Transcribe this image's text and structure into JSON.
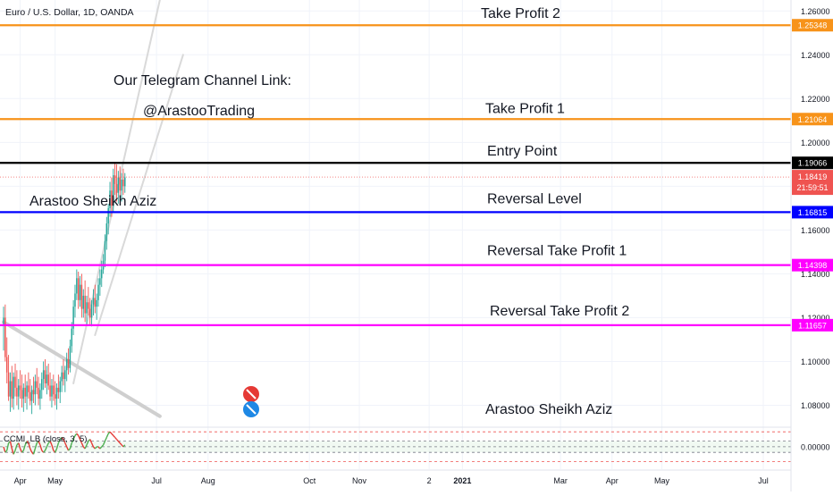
{
  "header": {
    "symbol": "Euro / U.S. Dollar, 1D, OANDA"
  },
  "annotations": {
    "telegram_line1": "Our Telegram Channel Link:",
    "telegram_line2": "@ArastooTrading",
    "author_top": "Arastoo Sheikh Aziz",
    "author_bottom": "Arastoo Sheikh Aziz"
  },
  "colors": {
    "up_candle": "#26a69a",
    "down_candle": "#ef5350",
    "take_profit": "#f7931a",
    "entry": "#000000",
    "reversal": "#0000ff",
    "reversal_tp": "#ff00ff",
    "price_tag": "#ef5350",
    "channel": "#d9d9d9",
    "indicator_up": "#4caf50",
    "indicator_down": "#e53935"
  },
  "chart_data": {
    "type": "candlestick",
    "title": "Euro / U.S. Dollar, 1D, OANDA",
    "ylim": [
      1.07,
      1.265
    ],
    "y_ticks": [
      1.08,
      1.1,
      1.12,
      1.14,
      1.16,
      1.18,
      1.2,
      1.22,
      1.24,
      1.26
    ],
    "y_tick_labels": [
      "1.08000",
      "1.10000",
      "1.12000",
      "1.14000",
      "1.16000",
      "1.18000",
      "1.20000",
      "1.22000",
      "1.24000",
      "1.26000"
    ],
    "x_tick_labels": [
      "Apr",
      "May",
      "Jul",
      "Aug",
      "Oct",
      "Nov",
      "2",
      "2021",
      "Mar",
      "Apr",
      "May",
      "Jul"
    ],
    "x_tick_days": [
      10,
      31,
      92,
      123,
      184,
      214,
      256,
      276,
      335,
      366,
      396,
      457
    ],
    "levels": [
      {
        "name": "Take Profit 2",
        "price": 1.25348,
        "price_label": "1.25348",
        "role": "take_profit"
      },
      {
        "name": "Take Profit 1",
        "price": 1.21064,
        "price_label": "1.21064",
        "role": "take_profit"
      },
      {
        "name": "Entry Point",
        "price": 1.19066,
        "price_label": "1.19066",
        "role": "entry"
      },
      {
        "name": "Reversal Level",
        "price": 1.16815,
        "price_label": "1.16815",
        "role": "reversal"
      },
      {
        "name": "Reversal Take Profit 1",
        "price": 1.14398,
        "price_label": "1.14398",
        "role": "reversal_tp"
      },
      {
        "name": "Reversal Take Profit 2",
        "price": 1.11657,
        "price_label": "1.11657",
        "role": "reversal_tp"
      }
    ],
    "current_price": {
      "price": 1.18419,
      "price_label": "1.18419",
      "countdown": "21:59:51"
    },
    "candles": [
      {
        "d": 0,
        "o": 1.117,
        "h": 1.125,
        "l": 1.105,
        "c": 1.12
      },
      {
        "d": 1,
        "o": 1.12,
        "h": 1.126,
        "l": 1.1,
        "c": 1.102
      },
      {
        "d": 2,
        "o": 1.102,
        "h": 1.111,
        "l": 1.09,
        "c": 1.095
      },
      {
        "d": 3,
        "o": 1.095,
        "h": 1.103,
        "l": 1.082,
        "c": 1.084
      },
      {
        "d": 4,
        "o": 1.084,
        "h": 1.095,
        "l": 1.077,
        "c": 1.091
      },
      {
        "d": 5,
        "o": 1.091,
        "h": 1.098,
        "l": 1.079,
        "c": 1.083
      },
      {
        "d": 6,
        "o": 1.083,
        "h": 1.095,
        "l": 1.078,
        "c": 1.093
      },
      {
        "d": 7,
        "o": 1.093,
        "h": 1.099,
        "l": 1.084,
        "c": 1.088
      },
      {
        "d": 8,
        "o": 1.088,
        "h": 1.096,
        "l": 1.08,
        "c": 1.084
      },
      {
        "d": 9,
        "o": 1.084,
        "h": 1.092,
        "l": 1.078,
        "c": 1.089
      },
      {
        "d": 10,
        "o": 1.089,
        "h": 1.096,
        "l": 1.083,
        "c": 1.087
      },
      {
        "d": 11,
        "o": 1.087,
        "h": 1.094,
        "l": 1.079,
        "c": 1.083
      },
      {
        "d": 12,
        "o": 1.083,
        "h": 1.09,
        "l": 1.077,
        "c": 1.088
      },
      {
        "d": 13,
        "o": 1.088,
        "h": 1.094,
        "l": 1.081,
        "c": 1.084
      },
      {
        "d": 14,
        "o": 1.084,
        "h": 1.091,
        "l": 1.078,
        "c": 1.089
      },
      {
        "d": 15,
        "o": 1.089,
        "h": 1.095,
        "l": 1.083,
        "c": 1.086
      },
      {
        "d": 16,
        "o": 1.086,
        "h": 1.092,
        "l": 1.08,
        "c": 1.082
      },
      {
        "d": 17,
        "o": 1.082,
        "h": 1.089,
        "l": 1.076,
        "c": 1.087
      },
      {
        "d": 18,
        "o": 1.087,
        "h": 1.093,
        "l": 1.081,
        "c": 1.085
      },
      {
        "d": 19,
        "o": 1.085,
        "h": 1.094,
        "l": 1.08,
        "c": 1.091
      },
      {
        "d": 20,
        "o": 1.091,
        "h": 1.097,
        "l": 1.085,
        "c": 1.088
      },
      {
        "d": 21,
        "o": 1.088,
        "h": 1.093,
        "l": 1.08,
        "c": 1.083
      },
      {
        "d": 22,
        "o": 1.083,
        "h": 1.09,
        "l": 1.078,
        "c": 1.087
      },
      {
        "d": 23,
        "o": 1.087,
        "h": 1.095,
        "l": 1.083,
        "c": 1.092
      },
      {
        "d": 24,
        "o": 1.092,
        "h": 1.1,
        "l": 1.087,
        "c": 1.096
      },
      {
        "d": 25,
        "o": 1.096,
        "h": 1.101,
        "l": 1.088,
        "c": 1.09
      },
      {
        "d": 26,
        "o": 1.09,
        "h": 1.098,
        "l": 1.085,
        "c": 1.094
      },
      {
        "d": 27,
        "o": 1.094,
        "h": 1.099,
        "l": 1.087,
        "c": 1.089
      },
      {
        "d": 28,
        "o": 1.089,
        "h": 1.095,
        "l": 1.082,
        "c": 1.084
      },
      {
        "d": 29,
        "o": 1.084,
        "h": 1.092,
        "l": 1.079,
        "c": 1.089
      },
      {
        "d": 30,
        "o": 1.089,
        "h": 1.094,
        "l": 1.082,
        "c": 1.085
      },
      {
        "d": 31,
        "o": 1.085,
        "h": 1.091,
        "l": 1.08,
        "c": 1.083
      },
      {
        "d": 32,
        "o": 1.083,
        "h": 1.09,
        "l": 1.078,
        "c": 1.088
      },
      {
        "d": 33,
        "o": 1.088,
        "h": 1.094,
        "l": 1.083,
        "c": 1.086
      },
      {
        "d": 34,
        "o": 1.086,
        "h": 1.093,
        "l": 1.081,
        "c": 1.091
      },
      {
        "d": 35,
        "o": 1.091,
        "h": 1.098,
        "l": 1.086,
        "c": 1.095
      },
      {
        "d": 36,
        "o": 1.095,
        "h": 1.101,
        "l": 1.089,
        "c": 1.092
      },
      {
        "d": 37,
        "o": 1.092,
        "h": 1.098,
        "l": 1.086,
        "c": 1.096
      },
      {
        "d": 38,
        "o": 1.096,
        "h": 1.104,
        "l": 1.091,
        "c": 1.101
      },
      {
        "d": 39,
        "o": 1.101,
        "h": 1.106,
        "l": 1.094,
        "c": 1.097
      },
      {
        "d": 40,
        "o": 1.097,
        "h": 1.11,
        "l": 1.095,
        "c": 1.107
      },
      {
        "d": 41,
        "o": 1.107,
        "h": 1.118,
        "l": 1.104,
        "c": 1.115
      },
      {
        "d": 42,
        "o": 1.115,
        "h": 1.128,
        "l": 1.112,
        "c": 1.125
      },
      {
        "d": 43,
        "o": 1.125,
        "h": 1.135,
        "l": 1.12,
        "c": 1.131
      },
      {
        "d": 44,
        "o": 1.131,
        "h": 1.142,
        "l": 1.128,
        "c": 1.138
      },
      {
        "d": 45,
        "o": 1.138,
        "h": 1.141,
        "l": 1.124,
        "c": 1.128
      },
      {
        "d": 46,
        "o": 1.128,
        "h": 1.139,
        "l": 1.125,
        "c": 1.135
      },
      {
        "d": 47,
        "o": 1.135,
        "h": 1.14,
        "l": 1.12,
        "c": 1.124
      },
      {
        "d": 48,
        "o": 1.124,
        "h": 1.133,
        "l": 1.12,
        "c": 1.13
      },
      {
        "d": 49,
        "o": 1.13,
        "h": 1.137,
        "l": 1.118,
        "c": 1.122
      },
      {
        "d": 50,
        "o": 1.122,
        "h": 1.13,
        "l": 1.117,
        "c": 1.127
      },
      {
        "d": 51,
        "o": 1.127,
        "h": 1.134,
        "l": 1.121,
        "c": 1.124
      },
      {
        "d": 52,
        "o": 1.124,
        "h": 1.129,
        "l": 1.117,
        "c": 1.12
      },
      {
        "d": 53,
        "o": 1.12,
        "h": 1.128,
        "l": 1.116,
        "c": 1.126
      },
      {
        "d": 54,
        "o": 1.126,
        "h": 1.133,
        "l": 1.121,
        "c": 1.129
      },
      {
        "d": 55,
        "o": 1.129,
        "h": 1.135,
        "l": 1.122,
        "c": 1.125
      },
      {
        "d": 56,
        "o": 1.125,
        "h": 1.131,
        "l": 1.119,
        "c": 1.128
      },
      {
        "d": 57,
        "o": 1.128,
        "h": 1.138,
        "l": 1.125,
        "c": 1.135
      },
      {
        "d": 58,
        "o": 1.135,
        "h": 1.142,
        "l": 1.13,
        "c": 1.138
      },
      {
        "d": 59,
        "o": 1.138,
        "h": 1.146,
        "l": 1.134,
        "c": 1.142
      },
      {
        "d": 60,
        "o": 1.142,
        "h": 1.149,
        "l": 1.14,
        "c": 1.146
      },
      {
        "d": 61,
        "o": 1.146,
        "h": 1.158,
        "l": 1.143,
        "c": 1.155
      },
      {
        "d": 62,
        "o": 1.155,
        "h": 1.166,
        "l": 1.151,
        "c": 1.163
      },
      {
        "d": 63,
        "o": 1.163,
        "h": 1.172,
        "l": 1.158,
        "c": 1.17
      },
      {
        "d": 64,
        "o": 1.17,
        "h": 1.182,
        "l": 1.166,
        "c": 1.178
      },
      {
        "d": 65,
        "o": 1.178,
        "h": 1.184,
        "l": 1.166,
        "c": 1.171
      },
      {
        "d": 66,
        "o": 1.171,
        "h": 1.188,
        "l": 1.168,
        "c": 1.185
      },
      {
        "d": 67,
        "o": 1.185,
        "h": 1.191,
        "l": 1.176,
        "c": 1.181
      },
      {
        "d": 68,
        "o": 1.181,
        "h": 1.19,
        "l": 1.173,
        "c": 1.177
      },
      {
        "d": 69,
        "o": 1.177,
        "h": 1.187,
        "l": 1.172,
        "c": 1.184
      },
      {
        "d": 70,
        "o": 1.184,
        "h": 1.189,
        "l": 1.175,
        "c": 1.178
      },
      {
        "d": 71,
        "o": 1.178,
        "h": 1.186,
        "l": 1.173,
        "c": 1.183
      },
      {
        "d": 72,
        "o": 1.183,
        "h": 1.188,
        "l": 1.176,
        "c": 1.18
      },
      {
        "d": 73,
        "o": 1.18,
        "h": 1.186,
        "l": 1.177,
        "c": 1.184
      }
    ],
    "channel_lines": [
      {
        "from": [
          42,
          1.09
        ],
        "to": [
          94,
          1.265
        ]
      },
      {
        "from": [
          55,
          1.112
        ],
        "to": [
          108,
          1.24
        ]
      }
    ],
    "trend_line": {
      "from": [
        0,
        1.118
      ],
      "to": [
        94,
        1.075
      ]
    },
    "indicator": {
      "label": "CCMI_LB (close, 3, 5)",
      "ylim": [
        -0.012,
        0.01
      ],
      "y_tick_labels": [
        "0.00000"
      ],
      "guide_levels": [
        0.008,
        0.003,
        0.0,
        -0.003,
        -0.008
      ],
      "values": [
        0.0,
        -0.003,
        -0.002,
        0.002,
        0.003,
        -0.001,
        -0.004,
        -0.002,
        0.001,
        0.002,
        -0.001,
        -0.003,
        -0.002,
        0.001,
        0.003,
        0.002,
        -0.001,
        -0.003,
        -0.004,
        -0.001,
        0.002,
        0.003,
        0.001,
        -0.002,
        -0.003,
        -0.002,
        0.0,
        0.002,
        0.003,
        0.001,
        -0.002,
        -0.003,
        -0.001,
        0.002,
        0.004,
        0.005,
        0.004,
        0.002,
        0.0,
        -0.002,
        -0.001,
        0.002,
        0.004,
        0.006,
        0.007,
        0.006,
        0.004,
        0.002,
        0.0,
        -0.001,
        0.001,
        0.003,
        0.004,
        0.002,
        0.0,
        -0.001,
        0.0,
        0.0,
        -0.001,
        0.0,
        0.001,
        0.003,
        0.005,
        0.007,
        0.008,
        0.007,
        0.006,
        0.005,
        0.004,
        0.003,
        0.002,
        0.001,
        0.0,
        0.001
      ]
    }
  }
}
